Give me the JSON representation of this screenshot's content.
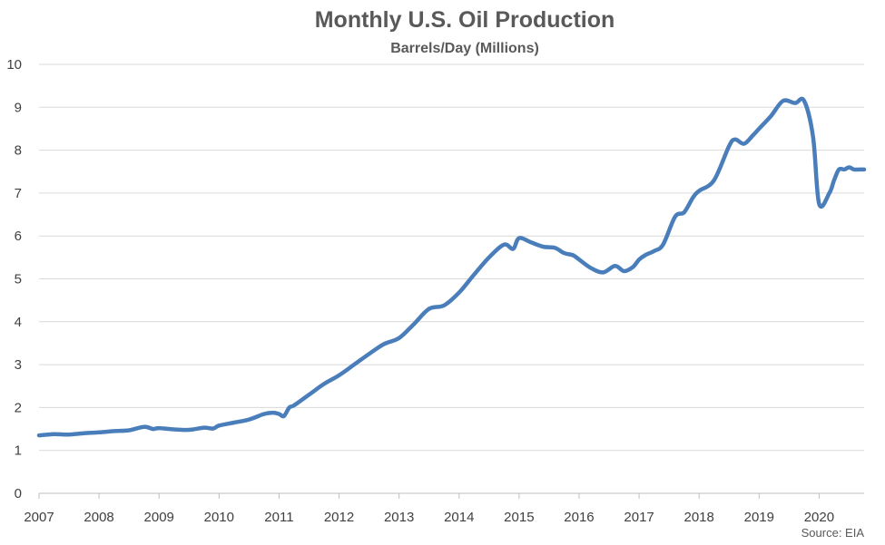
{
  "chart_data": {
    "type": "line",
    "title": "Monthly U.S. Oil Production",
    "subtitle": "Barrels/Day (Millions)",
    "source": "Source: EIA",
    "ylim": [
      0,
      10
    ],
    "xlim": [
      2007,
      2020.75
    ],
    "y_ticks": [
      "0",
      "1",
      "2",
      "3",
      "4",
      "5",
      "6",
      "7",
      "8",
      "9",
      "10"
    ],
    "x_ticks": [
      "2007",
      "2008",
      "2009",
      "2010",
      "2011",
      "2012",
      "2013",
      "2014",
      "2015",
      "2016",
      "2017",
      "2018",
      "2019",
      "2020"
    ],
    "grid": true,
    "line_color": "#4a7ebb",
    "series": [
      {
        "x": [
          2007.0,
          2007.25,
          2007.5,
          2007.75,
          2008.0,
          2008.25,
          2008.5,
          2008.75,
          2008.9,
          2009.0,
          2009.25,
          2009.5,
          2009.75,
          2009.9,
          2010.0,
          2010.25,
          2010.5,
          2010.75,
          2010.9,
          2011.0,
          2011.08,
          2011.17,
          2011.25,
          2011.5,
          2011.75,
          2012.0,
          2012.25,
          2012.5,
          2012.75,
          2013.0,
          2013.25,
          2013.5,
          2013.75,
          2014.0,
          2014.25,
          2014.5,
          2014.75,
          2014.9,
          2015.0,
          2015.2,
          2015.4,
          2015.6,
          2015.75,
          2015.9,
          2016.0,
          2016.2,
          2016.4,
          2016.6,
          2016.75,
          2016.9,
          2017.0,
          2017.1,
          2017.25,
          2017.4,
          2017.6,
          2017.75,
          2017.9,
          2018.0,
          2018.25,
          2018.5,
          2018.6,
          2018.75,
          2018.9,
          2019.0,
          2019.2,
          2019.4,
          2019.6,
          2019.75,
          2019.9,
          2020.0,
          2020.17,
          2020.25,
          2020.33,
          2020.42,
          2020.5,
          2020.58,
          2020.67,
          2020.75
        ],
        "values": [
          1.35,
          1.38,
          1.37,
          1.4,
          1.42,
          1.45,
          1.47,
          1.55,
          1.5,
          1.52,
          1.49,
          1.48,
          1.53,
          1.51,
          1.58,
          1.65,
          1.72,
          1.85,
          1.88,
          1.85,
          1.8,
          2.0,
          2.05,
          2.3,
          2.55,
          2.75,
          3.0,
          3.25,
          3.48,
          3.62,
          3.95,
          4.3,
          4.38,
          4.68,
          5.1,
          5.5,
          5.8,
          5.7,
          5.95,
          5.85,
          5.75,
          5.72,
          5.6,
          5.55,
          5.45,
          5.25,
          5.15,
          5.3,
          5.18,
          5.28,
          5.45,
          5.55,
          5.65,
          5.8,
          6.45,
          6.55,
          6.9,
          7.05,
          7.3,
          8.1,
          8.25,
          8.15,
          8.35,
          8.5,
          8.8,
          9.15,
          9.1,
          9.15,
          8.3,
          6.75,
          7.0,
          7.3,
          7.55,
          7.55,
          7.6,
          7.55,
          7.55,
          7.55
        ]
      }
    ]
  }
}
